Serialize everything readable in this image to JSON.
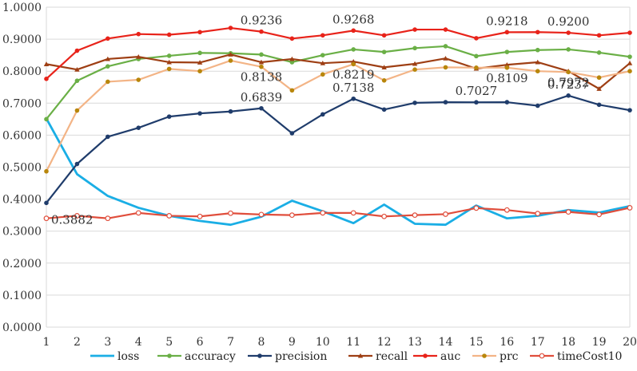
{
  "chart_data": {
    "type": "line",
    "title": "",
    "xlabel": "",
    "ylabel": "",
    "x": [
      1,
      2,
      3,
      4,
      5,
      6,
      7,
      8,
      9,
      10,
      11,
      12,
      13,
      14,
      15,
      16,
      17,
      18,
      19,
      20
    ],
    "ylim": [
      0,
      1.0
    ],
    "yticks": [
      "0.0000",
      "0.1000",
      "0.2000",
      "0.3000",
      "0.4000",
      "0.5000",
      "0.6000",
      "0.7000",
      "0.8000",
      "0.9000",
      "1.0000"
    ],
    "grid": true,
    "legend_position": "bottom",
    "series": [
      {
        "name": "loss",
        "color": "#1aaee5",
        "marker": "none",
        "values": [
          0.652,
          0.478,
          0.41,
          0.373,
          0.348,
          0.332,
          0.32,
          0.345,
          0.395,
          0.362,
          0.325,
          0.383,
          0.323,
          0.32,
          0.38,
          0.34,
          0.348,
          0.366,
          0.358,
          0.378
        ]
      },
      {
        "name": "accuracy",
        "color": "#6aaf46",
        "marker": "circle",
        "values": [
          0.65,
          0.77,
          0.815,
          0.838,
          0.848,
          0.857,
          0.856,
          0.852,
          0.828,
          0.85,
          0.868,
          0.86,
          0.872,
          0.878,
          0.847,
          0.86,
          0.866,
          0.868,
          0.858,
          0.845
        ]
      },
      {
        "name": "precision",
        "color": "#1f3c6b",
        "marker": "circle",
        "values": [
          0.3882,
          0.51,
          0.595,
          0.623,
          0.658,
          0.668,
          0.674,
          0.6839,
          0.606,
          0.665,
          0.7138,
          0.68,
          0.701,
          0.703,
          0.7027,
          0.703,
          0.692,
          0.7237,
          0.695,
          0.678
        ]
      },
      {
        "name": "recall",
        "color": "#9e3f14",
        "marker": "triangle",
        "values": [
          0.822,
          0.805,
          0.838,
          0.845,
          0.828,
          0.827,
          0.852,
          0.828,
          0.838,
          0.825,
          0.83,
          0.812,
          0.823,
          0.84,
          0.808,
          0.82,
          0.828,
          0.8,
          0.745,
          0.825
        ]
      },
      {
        "name": "auc",
        "color": "#e8231a",
        "marker": "circle",
        "values": [
          0.776,
          0.864,
          0.902,
          0.916,
          0.914,
          0.922,
          0.935,
          0.9236,
          0.902,
          0.912,
          0.9268,
          0.912,
          0.93,
          0.93,
          0.903,
          0.9218,
          0.922,
          0.92,
          0.912,
          0.92
        ]
      },
      {
        "name": "prc",
        "color": "#b8860b",
        "lineColor": "#f3b486",
        "marker": "circle",
        "values": [
          0.487,
          0.677,
          0.767,
          0.773,
          0.807,
          0.8,
          0.833,
          0.8138,
          0.74,
          0.79,
          0.8219,
          0.771,
          0.805,
          0.812,
          0.8109,
          0.8109,
          0.8,
          0.7972,
          0.78,
          0.8
        ]
      },
      {
        "name": "timeCost10",
        "color": "#e04e3c",
        "marker": "hollow-circle",
        "values": [
          0.34,
          0.348,
          0.34,
          0.357,
          0.348,
          0.346,
          0.356,
          0.352,
          0.35,
          0.357,
          0.357,
          0.346,
          0.35,
          0.353,
          0.372,
          0.366,
          0.355,
          0.36,
          0.352,
          0.373
        ]
      }
    ],
    "annotations": [
      {
        "text": "0.3882",
        "series": "precision",
        "x": 1
      },
      {
        "text": "0.6839",
        "series": "precision",
        "x": 8
      },
      {
        "text": "0.7138",
        "series": "precision",
        "x": 11
      },
      {
        "text": "0.7027",
        "series": "precision",
        "x": 15
      },
      {
        "text": "0.7237",
        "series": "precision",
        "x": 18
      },
      {
        "text": "0.9236",
        "series": "auc",
        "x": 8
      },
      {
        "text": "0.9268",
        "series": "auc",
        "x": 11
      },
      {
        "text": "0.9218",
        "series": "auc",
        "x": 16
      },
      {
        "text": "0.9200",
        "series": "auc",
        "x": 18
      },
      {
        "text": "0.8138",
        "series": "prc",
        "x": 8
      },
      {
        "text": "0.8219",
        "series": "prc",
        "x": 11
      },
      {
        "text": "0.8109",
        "series": "prc",
        "x": 16
      },
      {
        "text": "0.7972",
        "series": "prc",
        "x": 18
      }
    ]
  }
}
